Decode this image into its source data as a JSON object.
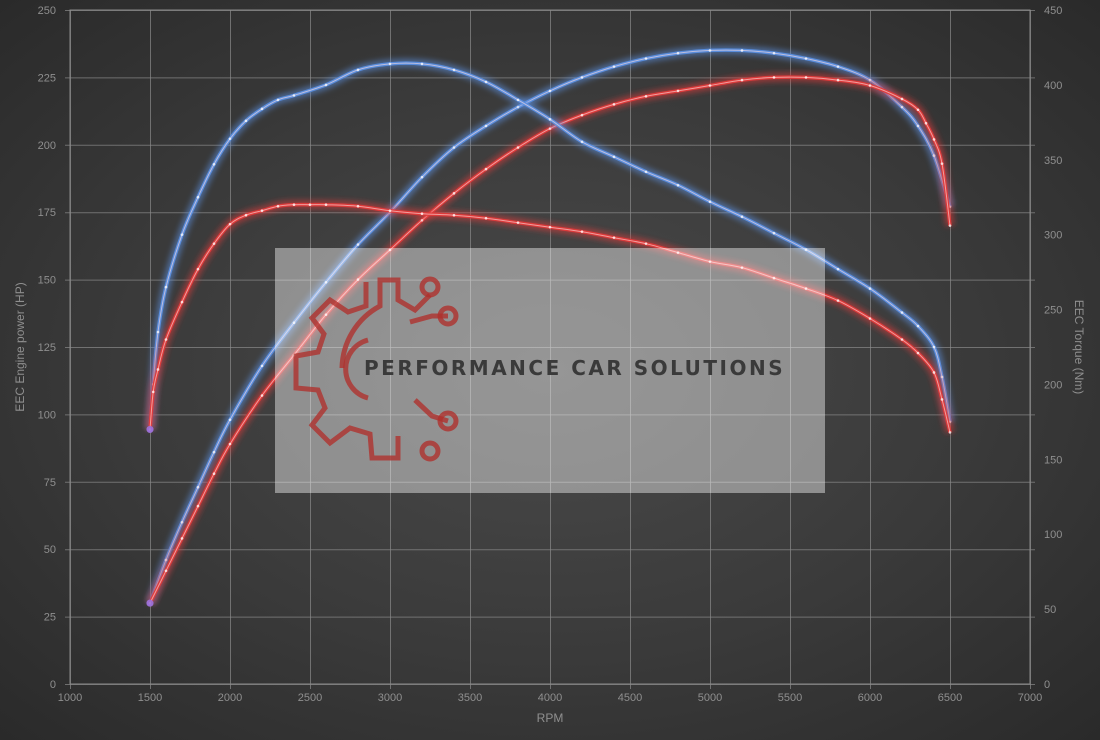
{
  "chart_data": {
    "type": "line",
    "xlabel": "RPM",
    "ylabel_left": "EEC Engine power (HP)",
    "ylabel_right": "EEC Torque (Nm)",
    "xlim": [
      1000,
      7000
    ],
    "ylim_left": [
      0,
      250
    ],
    "ylim_right": [
      0,
      450
    ],
    "xticks": [
      "1000",
      "1500",
      "2000",
      "2500",
      "3000",
      "3500",
      "4000",
      "4500",
      "5000",
      "5500",
      "6000",
      "6500",
      "7000"
    ],
    "yticks_left": [
      "0",
      "25",
      "50",
      "75",
      "100",
      "125",
      "150",
      "175",
      "200",
      "225",
      "250"
    ],
    "yticks_right": [
      "0",
      "50",
      "100",
      "150",
      "200",
      "250",
      "300",
      "350",
      "400",
      "450"
    ],
    "grid": true,
    "series": [
      {
        "color": "#5b8fe0",
        "axis": "left",
        "x": [
          1500,
          1600,
          1700,
          1800,
          1900,
          2000,
          2200,
          2400,
          2600,
          2800,
          3000,
          3200,
          3400,
          3600,
          3800,
          4000,
          4200,
          4400,
          4600,
          4800,
          5000,
          5200,
          5400,
          5600,
          5800,
          6000,
          6200,
          6300,
          6400,
          6500
        ],
        "y": [
          30,
          46,
          60,
          73,
          86,
          98,
          118,
          134,
          149,
          163,
          175,
          188,
          199,
          207,
          214,
          220,
          225,
          229,
          232,
          234,
          235,
          235,
          234,
          232,
          229,
          224,
          214,
          207,
          196,
          177
        ]
      },
      {
        "color": "#e03a3a",
        "axis": "left",
        "x": [
          1500,
          1600,
          1700,
          1800,
          1900,
          2000,
          2200,
          2400,
          2600,
          2800,
          3000,
          3200,
          3400,
          3600,
          3800,
          4000,
          4200,
          4400,
          4600,
          4800,
          5000,
          5200,
          5400,
          5600,
          5800,
          6000,
          6200,
          6300,
          6350,
          6400,
          6450,
          6500
        ],
        "y": [
          30,
          42,
          54,
          66,
          78,
          89,
          107,
          122,
          137,
          150,
          161,
          172,
          182,
          191,
          199,
          206,
          211,
          215,
          218,
          220,
          222,
          224,
          225,
          225,
          224,
          222,
          217,
          213,
          208,
          202,
          193,
          170
        ]
      },
      {
        "color": "#5b8fe0",
        "axis": "right",
        "x": [
          1500,
          1520,
          1550,
          1600,
          1700,
          1800,
          1900,
          2000,
          2100,
          2200,
          2300,
          2400,
          2600,
          2800,
          3000,
          3200,
          3400,
          3600,
          3800,
          4000,
          4200,
          4400,
          4600,
          4800,
          5000,
          5200,
          5400,
          5600,
          5800,
          6000,
          6200,
          6300,
          6400,
          6450,
          6500
        ],
        "y": [
          170,
          200,
          235,
          265,
          300,
          325,
          347,
          364,
          376,
          384,
          390,
          393,
          400,
          410,
          414,
          414,
          410,
          402,
          390,
          377,
          362,
          352,
          342,
          333,
          322,
          312,
          301,
          290,
          277,
          264,
          248,
          239,
          225,
          205,
          175
        ]
      },
      {
        "color": "#e03a3a",
        "axis": "right",
        "x": [
          1500,
          1520,
          1550,
          1600,
          1700,
          1800,
          1900,
          2000,
          2100,
          2200,
          2300,
          2400,
          2500,
          2600,
          2800,
          3000,
          3200,
          3400,
          3600,
          3800,
          4000,
          4200,
          4400,
          4600,
          4800,
          5000,
          5200,
          5400,
          5600,
          5800,
          6000,
          6200,
          6300,
          6400,
          6450,
          6500
        ],
        "y": [
          170,
          195,
          210,
          230,
          255,
          277,
          294,
          307,
          313,
          316,
          319,
          320,
          320,
          320,
          319,
          316,
          314,
          313,
          311,
          308,
          305,
          302,
          298,
          294,
          288,
          282,
          278,
          271,
          264,
          256,
          244,
          230,
          221,
          208,
          190,
          168
        ]
      }
    ]
  },
  "watermark": {
    "text": "PERFORMANCE CAR SOLUTIONS",
    "logo_color": "#b0302c"
  }
}
